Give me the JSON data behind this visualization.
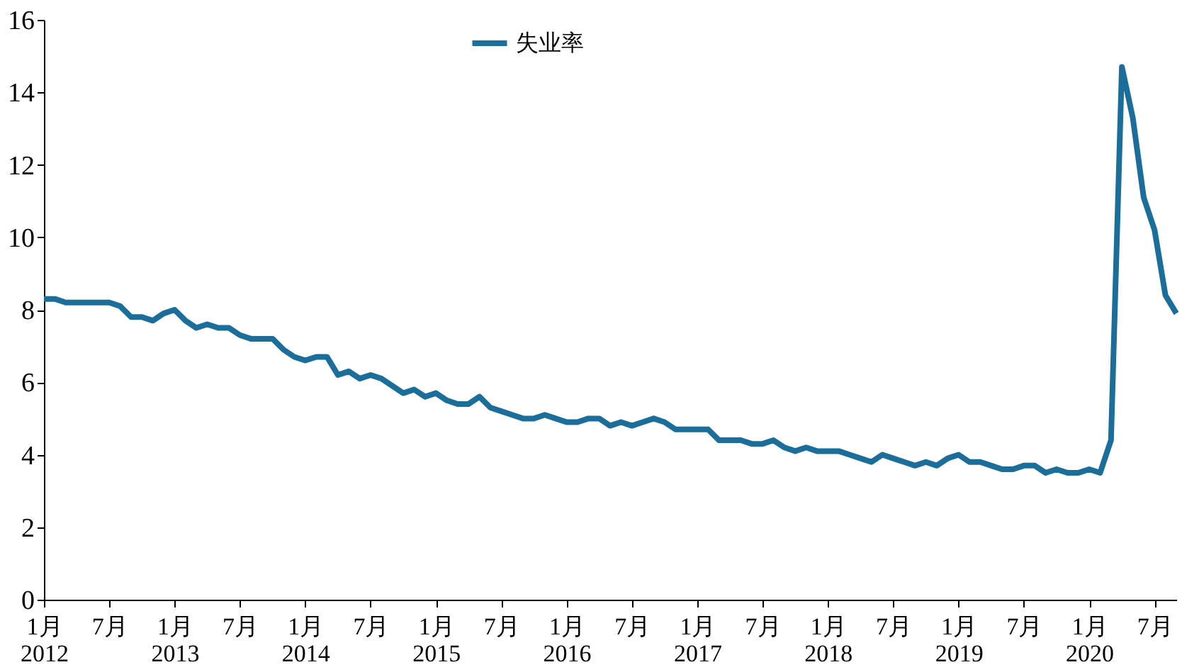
{
  "chart_data": {
    "type": "line",
    "categories": [
      "1月 2012",
      null,
      null,
      null,
      null,
      null,
      "7月",
      null,
      null,
      null,
      null,
      null,
      "1月 2013",
      null,
      null,
      null,
      null,
      null,
      "7月",
      null,
      null,
      null,
      null,
      null,
      "1月 2014",
      null,
      null,
      null,
      null,
      null,
      "7月",
      null,
      null,
      null,
      null,
      null,
      "1月 2015",
      null,
      null,
      null,
      null,
      null,
      "7月",
      null,
      null,
      null,
      null,
      null,
      "1月 2016",
      null,
      null,
      null,
      null,
      null,
      "7月",
      null,
      null,
      null,
      null,
      null,
      "1月 2017",
      null,
      null,
      null,
      null,
      null,
      "7月",
      null,
      null,
      null,
      null,
      null,
      "1月 2018",
      null,
      null,
      null,
      null,
      null,
      "7月",
      null,
      null,
      null,
      null,
      null,
      "1月 2019",
      null,
      null,
      null,
      null,
      null,
      "7月",
      null,
      null,
      null,
      null,
      null,
      "1月 2020",
      null,
      null,
      null,
      null,
      null,
      "7月",
      null,
      null
    ],
    "series": [
      {
        "name": "失业率",
        "color": "#1b6e9a",
        "values": [
          8.3,
          8.3,
          8.2,
          8.2,
          8.2,
          8.2,
          8.2,
          8.1,
          7.8,
          7.8,
          7.7,
          7.9,
          8.0,
          7.7,
          7.5,
          7.6,
          7.5,
          7.5,
          7.3,
          7.2,
          7.2,
          7.2,
          6.9,
          6.7,
          6.6,
          6.7,
          6.7,
          6.2,
          6.3,
          6.1,
          6.2,
          6.1,
          5.9,
          5.7,
          5.8,
          5.6,
          5.7,
          5.5,
          5.4,
          5.4,
          5.6,
          5.3,
          5.2,
          5.1,
          5.0,
          5.0,
          5.1,
          5.0,
          4.9,
          4.9,
          5.0,
          5.0,
          4.8,
          4.9,
          4.8,
          4.9,
          5.0,
          4.9,
          4.7,
          4.7,
          4.7,
          4.7,
          4.4,
          4.4,
          4.4,
          4.3,
          4.3,
          4.4,
          4.2,
          4.1,
          4.2,
          4.1,
          4.1,
          4.1,
          4.0,
          3.9,
          3.8,
          4.0,
          3.9,
          3.8,
          3.7,
          3.8,
          3.7,
          3.9,
          4.0,
          3.8,
          3.8,
          3.7,
          3.6,
          3.6,
          3.7,
          3.7,
          3.5,
          3.6,
          3.5,
          3.5,
          3.6,
          3.5,
          4.4,
          14.7,
          13.3,
          11.1,
          10.2,
          8.4,
          7.9
        ]
      }
    ],
    "ylim": [
      0,
      16
    ],
    "yticks": [
      0,
      2,
      4,
      6,
      8,
      10,
      12,
      14,
      16
    ],
    "grid": false,
    "legend": "top",
    "marker": "none",
    "line_style": "solid"
  }
}
